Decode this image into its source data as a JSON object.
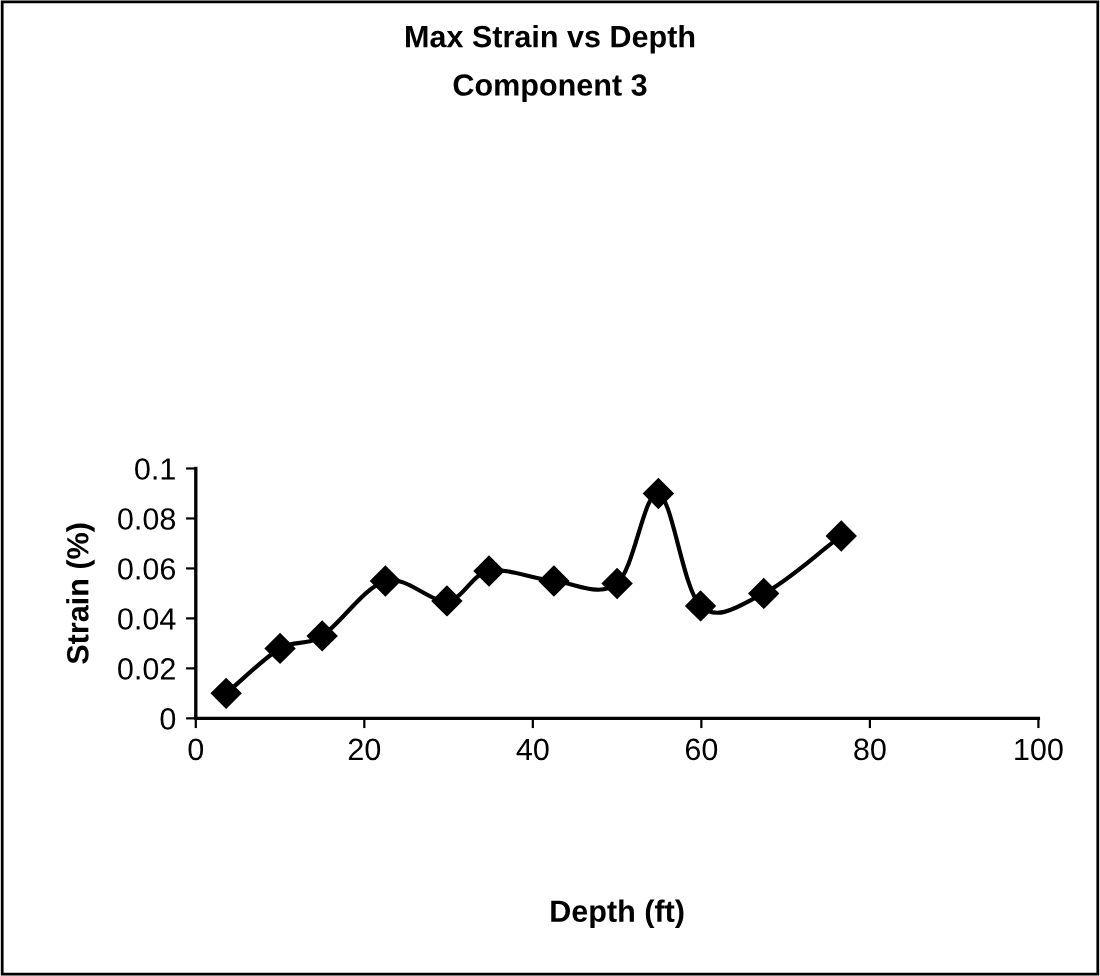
{
  "chart_data": {
    "type": "line",
    "title": "Max Strain vs Depth\nComponent 3",
    "xlabel": "Depth (ft)",
    "ylabel": "Strain (%)",
    "series": [
      {
        "color": "#000000",
        "x": [
          3.6,
          10.0,
          15.0,
          22.5,
          29.8,
          34.8,
          42.5,
          50.0,
          54.9,
          59.9,
          67.4,
          76.6
        ],
        "values": [
          0.01,
          0.028,
          0.033,
          0.055,
          0.047,
          0.059,
          0.055,
          0.054,
          0.09,
          0.045,
          0.05,
          0.073
        ]
      }
    ],
    "xlim": [
      0,
      100
    ],
    "xticks": [
      0,
      20,
      40,
      60,
      80,
      100
    ],
    "ylim": [
      0,
      0.1
    ],
    "yticks": [
      0,
      0.02,
      0.04,
      0.06,
      0.08,
      0.1
    ],
    "marker": "diamond",
    "line_style": "solid",
    "grid": false,
    "legend": false
  }
}
